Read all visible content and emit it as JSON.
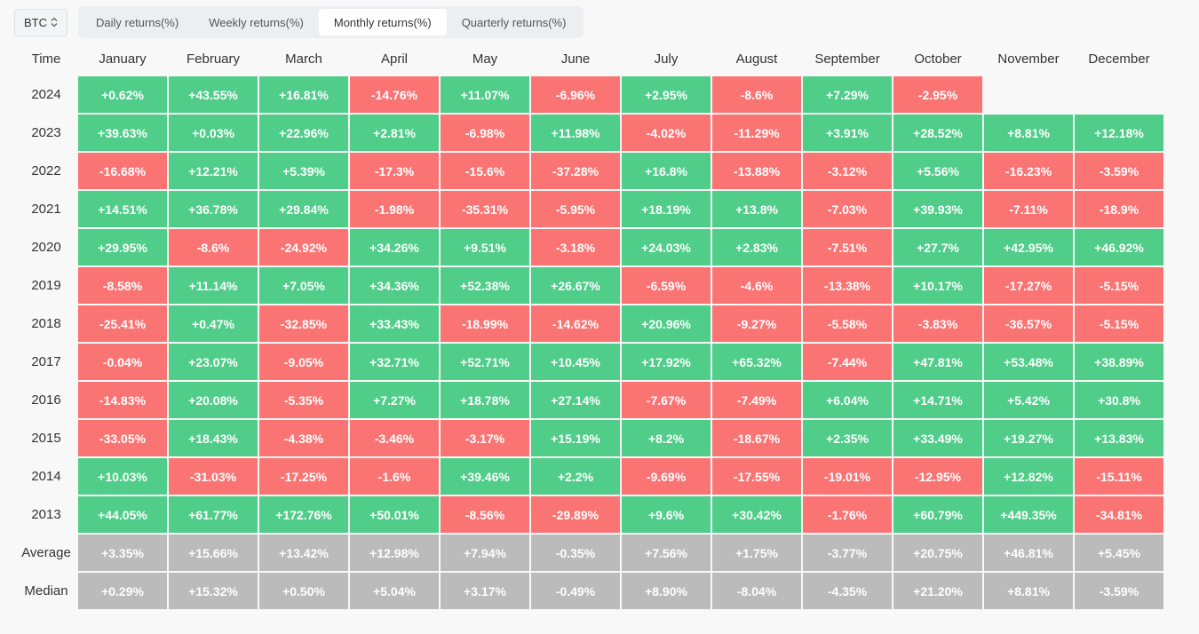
{
  "asset_selector": {
    "value": "BTC"
  },
  "tabs": [
    {
      "label": "Daily returns(%)",
      "active": false
    },
    {
      "label": "Weekly returns(%)",
      "active": false
    },
    {
      "label": "Monthly returns(%)",
      "active": true
    },
    {
      "label": "Quarterly returns(%)",
      "active": false
    }
  ],
  "colors": {
    "positive": "#4fcd89",
    "negative": "#fb7474",
    "summary": "#bbbbbb"
  },
  "table": {
    "time_header": "Time",
    "months": [
      "January",
      "February",
      "March",
      "April",
      "May",
      "June",
      "July",
      "August",
      "September",
      "October",
      "November",
      "December"
    ],
    "rows": [
      {
        "label": "2024",
        "type": "year",
        "values": [
          "+0.62%",
          "+43.55%",
          "+16.81%",
          "-14.76%",
          "+11.07%",
          "-6.96%",
          "+2.95%",
          "-8.6%",
          "+7.29%",
          "-2.95%",
          "",
          ""
        ]
      },
      {
        "label": "2023",
        "type": "year",
        "values": [
          "+39.63%",
          "+0.03%",
          "+22.96%",
          "+2.81%",
          "-6.98%",
          "+11.98%",
          "-4.02%",
          "-11.29%",
          "+3.91%",
          "+28.52%",
          "+8.81%",
          "+12.18%"
        ]
      },
      {
        "label": "2022",
        "type": "year",
        "values": [
          "-16.68%",
          "+12.21%",
          "+5.39%",
          "-17.3%",
          "-15.6%",
          "-37.28%",
          "+16.8%",
          "-13.88%",
          "-3.12%",
          "+5.56%",
          "-16.23%",
          "-3.59%"
        ]
      },
      {
        "label": "2021",
        "type": "year",
        "values": [
          "+14.51%",
          "+36.78%",
          "+29.84%",
          "-1.98%",
          "-35.31%",
          "-5.95%",
          "+18.19%",
          "+13.8%",
          "-7.03%",
          "+39.93%",
          "-7.11%",
          "-18.9%"
        ]
      },
      {
        "label": "2020",
        "type": "year",
        "values": [
          "+29.95%",
          "-8.6%",
          "-24.92%",
          "+34.26%",
          "+9.51%",
          "-3.18%",
          "+24.03%",
          "+2.83%",
          "-7.51%",
          "+27.7%",
          "+42.95%",
          "+46.92%"
        ]
      },
      {
        "label": "2019",
        "type": "year",
        "values": [
          "-8.58%",
          "+11.14%",
          "+7.05%",
          "+34.36%",
          "+52.38%",
          "+26.67%",
          "-6.59%",
          "-4.6%",
          "-13.38%",
          "+10.17%",
          "-17.27%",
          "-5.15%"
        ]
      },
      {
        "label": "2018",
        "type": "year",
        "values": [
          "-25.41%",
          "+0.47%",
          "-32.85%",
          "+33.43%",
          "-18.99%",
          "-14.62%",
          "+20.96%",
          "-9.27%",
          "-5.58%",
          "-3.83%",
          "-36.57%",
          "-5.15%"
        ]
      },
      {
        "label": "2017",
        "type": "year",
        "values": [
          "-0.04%",
          "+23.07%",
          "-9.05%",
          "+32.71%",
          "+52.71%",
          "+10.45%",
          "+17.92%",
          "+65.32%",
          "-7.44%",
          "+47.81%",
          "+53.48%",
          "+38.89%"
        ]
      },
      {
        "label": "2016",
        "type": "year",
        "values": [
          "-14.83%",
          "+20.08%",
          "-5.35%",
          "+7.27%",
          "+18.78%",
          "+27.14%",
          "-7.67%",
          "-7.49%",
          "+6.04%",
          "+14.71%",
          "+5.42%",
          "+30.8%"
        ]
      },
      {
        "label": "2015",
        "type": "year",
        "values": [
          "-33.05%",
          "+18.43%",
          "-4.38%",
          "-3.46%",
          "-3.17%",
          "+15.19%",
          "+8.2%",
          "-18.67%",
          "+2.35%",
          "+33.49%",
          "+19.27%",
          "+13.83%"
        ]
      },
      {
        "label": "2014",
        "type": "year",
        "values": [
          "+10.03%",
          "-31.03%",
          "-17.25%",
          "-1.6%",
          "+39.46%",
          "+2.2%",
          "-9.69%",
          "-17.55%",
          "-19.01%",
          "-12.95%",
          "+12.82%",
          "-15.11%"
        ]
      },
      {
        "label": "2013",
        "type": "year",
        "values": [
          "+44.05%",
          "+61.77%",
          "+172.76%",
          "+50.01%",
          "-8.56%",
          "-29.89%",
          "+9.6%",
          "+30.42%",
          "-1.76%",
          "+60.79%",
          "+449.35%",
          "-34.81%"
        ]
      },
      {
        "label": "Average",
        "type": "summary",
        "values": [
          "+3.35%",
          "+15.66%",
          "+13.42%",
          "+12.98%",
          "+7.94%",
          "-0.35%",
          "+7.56%",
          "+1.75%",
          "-3.77%",
          "+20.75%",
          "+46.81%",
          "+5.45%"
        ]
      },
      {
        "label": "Median",
        "type": "summary",
        "values": [
          "+0.29%",
          "+15.32%",
          "+0.50%",
          "+5.04%",
          "+3.17%",
          "-0.49%",
          "+8.90%",
          "-8.04%",
          "-4.35%",
          "+21.20%",
          "+8.81%",
          "-3.59%"
        ]
      }
    ]
  }
}
